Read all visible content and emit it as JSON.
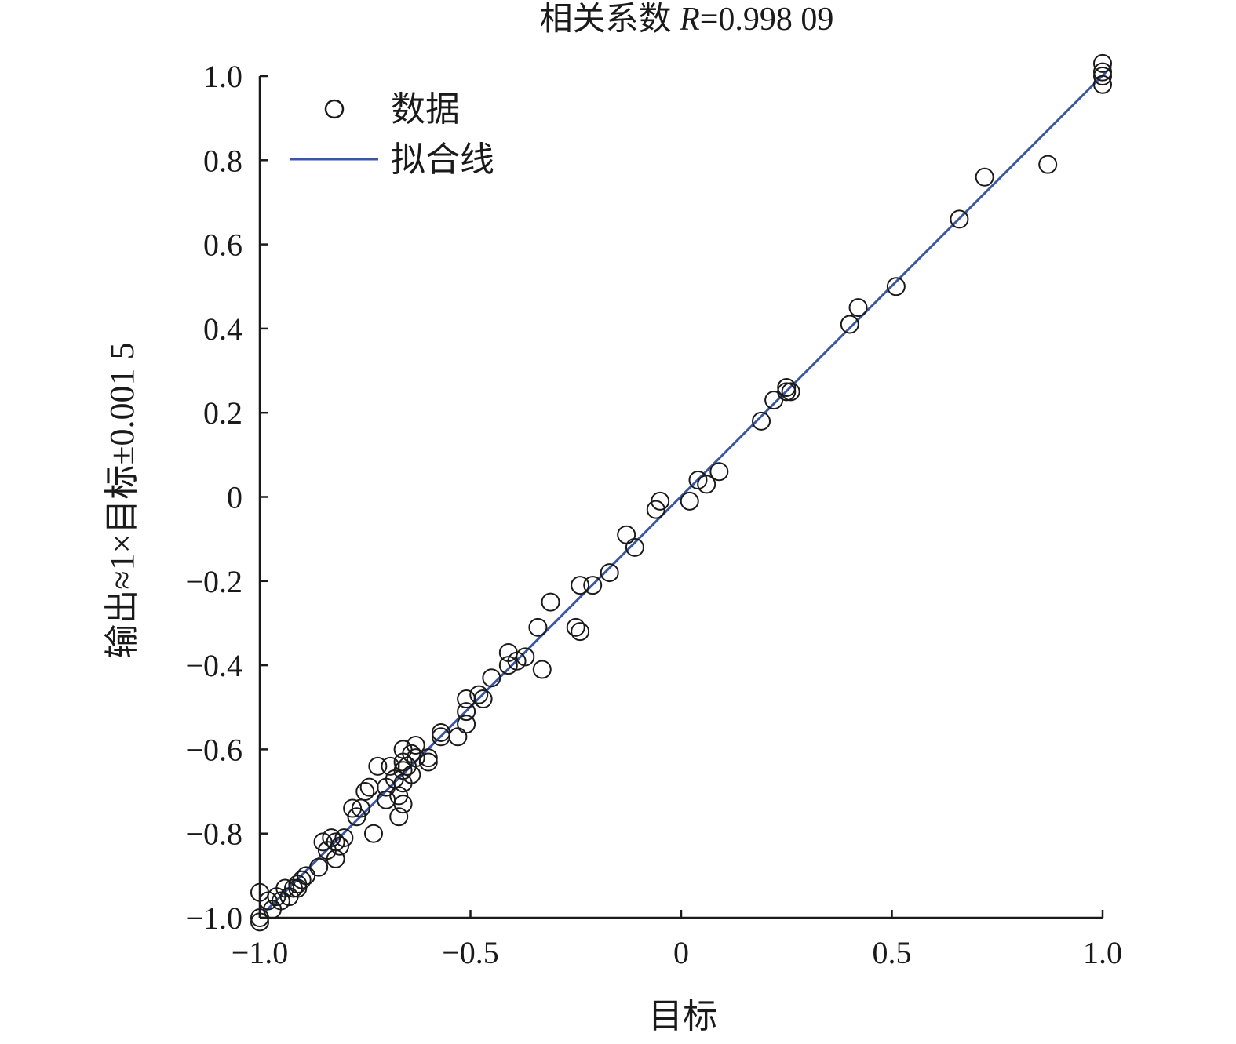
{
  "chart_data": {
    "type": "scatter",
    "title": {
      "prefix": "相关系数 ",
      "italic": "R",
      "suffix": "=0.998 09"
    },
    "xlabel": "目标",
    "ylabel": "输出≈1×目标±0.001 5",
    "xlim": [
      -1.0,
      1.0
    ],
    "ylim": [
      -1.0,
      1.0
    ],
    "x_ticks": [
      {
        "value": -1.0,
        "label": "−1.0"
      },
      {
        "value": -0.5,
        "label": "−0.5"
      },
      {
        "value": 0,
        "label": "0"
      },
      {
        "value": 0.5,
        "label": "0.5"
      },
      {
        "value": 1.0,
        "label": "1.0"
      }
    ],
    "y_ticks": [
      {
        "value": 1.0,
        "label": "1.0"
      },
      {
        "value": 0.8,
        "label": "0.8"
      },
      {
        "value": 0.6,
        "label": "0.6"
      },
      {
        "value": 0.4,
        "label": "0.4"
      },
      {
        "value": 0.2,
        "label": "0.2"
      },
      {
        "value": 0,
        "label": "0"
      },
      {
        "value": -0.2,
        "label": "−0.2"
      },
      {
        "value": -0.4,
        "label": "−0.4"
      },
      {
        "value": -0.6,
        "label": "−0.6"
      },
      {
        "value": -0.8,
        "label": "−0.8"
      },
      {
        "value": -1.0,
        "label": "−1.0"
      }
    ],
    "grid": false,
    "legend": {
      "placement": "top-left",
      "entries": [
        {
          "label": "数据",
          "marker": "open-circle"
        },
        {
          "label": "拟合线",
          "marker": "line"
        }
      ]
    },
    "colors": {
      "fit_line": "#3a57a5",
      "marker": "#1a1a1a",
      "axis": "#1a1a1a"
    },
    "fit_line": {
      "slope": 1.0,
      "intercept": 0.0015,
      "x_range": [
        -0.99,
        1.02
      ]
    },
    "series": [
      {
        "name": "数据",
        "points": [
          [
            1.0,
            1.03
          ],
          [
            1.0,
            1.01
          ],
          [
            1.0,
            1.0
          ],
          [
            1.0,
            0.98
          ],
          [
            0.87,
            0.79
          ],
          [
            0.72,
            0.76
          ],
          [
            0.66,
            0.66
          ],
          [
            0.51,
            0.5
          ],
          [
            0.42,
            0.45
          ],
          [
            0.4,
            0.41
          ],
          [
            0.26,
            0.25
          ],
          [
            0.25,
            0.26
          ],
          [
            0.25,
            0.25
          ],
          [
            0.22,
            0.23
          ],
          [
            0.19,
            0.18
          ],
          [
            0.09,
            0.06
          ],
          [
            0.06,
            0.03
          ],
          [
            0.04,
            0.04
          ],
          [
            0.02,
            -0.01
          ],
          [
            -0.05,
            -0.01
          ],
          [
            -0.06,
            -0.03
          ],
          [
            -0.11,
            -0.12
          ],
          [
            -0.13,
            -0.09
          ],
          [
            -0.17,
            -0.18
          ],
          [
            -0.21,
            -0.21
          ],
          [
            -0.24,
            -0.21
          ],
          [
            -0.25,
            -0.31
          ],
          [
            -0.24,
            -0.32
          ],
          [
            -0.31,
            -0.25
          ],
          [
            -0.33,
            -0.41
          ],
          [
            -0.34,
            -0.31
          ],
          [
            -0.37,
            -0.38
          ],
          [
            -0.39,
            -0.39
          ],
          [
            -0.41,
            -0.4
          ],
          [
            -0.41,
            -0.37
          ],
          [
            -0.45,
            -0.43
          ],
          [
            -0.47,
            -0.48
          ],
          [
            -0.48,
            -0.47
          ],
          [
            -0.51,
            -0.48
          ],
          [
            -0.51,
            -0.51
          ],
          [
            -0.51,
            -0.54
          ],
          [
            -0.53,
            -0.57
          ],
          [
            -0.57,
            -0.57
          ],
          [
            -0.57,
            -0.56
          ],
          [
            -0.6,
            -0.62
          ],
          [
            -0.6,
            -0.63
          ],
          [
            -0.63,
            -0.59
          ],
          [
            -0.63,
            -0.62
          ],
          [
            -0.64,
            -0.61
          ],
          [
            -0.64,
            -0.66
          ],
          [
            -0.65,
            -0.64
          ],
          [
            -0.66,
            -0.63
          ],
          [
            -0.66,
            -0.6
          ],
          [
            -0.66,
            -0.65
          ],
          [
            -0.66,
            -0.68
          ],
          [
            -0.66,
            -0.73
          ],
          [
            -0.67,
            -0.76
          ],
          [
            -0.67,
            -0.71
          ],
          [
            -0.68,
            -0.67
          ],
          [
            -0.69,
            -0.64
          ],
          [
            -0.7,
            -0.69
          ],
          [
            -0.7,
            -0.72
          ],
          [
            -0.72,
            -0.64
          ],
          [
            -0.73,
            -0.8
          ],
          [
            -0.74,
            -0.69
          ],
          [
            -0.75,
            -0.7
          ],
          [
            -0.76,
            -0.74
          ],
          [
            -0.77,
            -0.76
          ],
          [
            -0.78,
            -0.74
          ],
          [
            -0.8,
            -0.81
          ],
          [
            -0.81,
            -0.83
          ],
          [
            -0.82,
            -0.86
          ],
          [
            -0.82,
            -0.82
          ],
          [
            -0.83,
            -0.81
          ],
          [
            -0.84,
            -0.84
          ],
          [
            -0.85,
            -0.82
          ],
          [
            -0.86,
            -0.88
          ],
          [
            -0.89,
            -0.9
          ],
          [
            -0.9,
            -0.91
          ],
          [
            -0.91,
            -0.93
          ],
          [
            -0.91,
            -0.92
          ],
          [
            -0.92,
            -0.93
          ],
          [
            -0.93,
            -0.95
          ],
          [
            -0.94,
            -0.93
          ],
          [
            -0.95,
            -0.96
          ],
          [
            -0.96,
            -0.95
          ],
          [
            -0.97,
            -0.98
          ],
          [
            -0.98,
            -0.96
          ],
          [
            -1.0,
            -0.94
          ],
          [
            -1.0,
            -1.0
          ],
          [
            -1.0,
            -1.01
          ]
        ]
      }
    ]
  }
}
